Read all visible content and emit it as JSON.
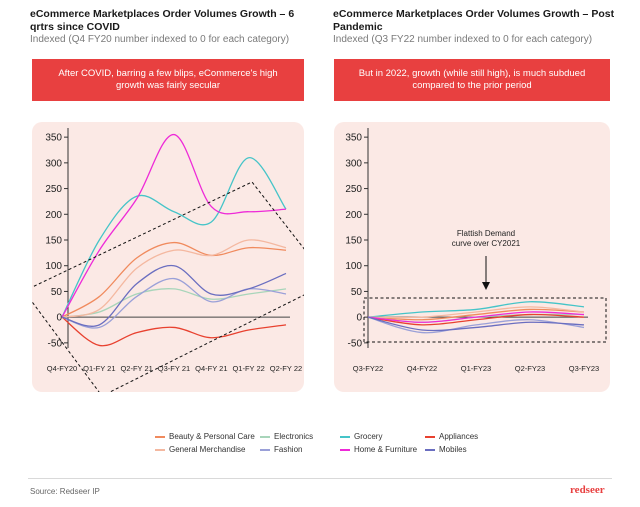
{
  "left": {
    "title": "eCommerce Marketplaces Order Volumes Growth – 6 qrtrs since COVID",
    "subtitle": "Indexed (Q4 FY20 number indexed to 0 for each category)",
    "callout": "After COVID, barring a few blips, eCommerce's high growth was fairly secular"
  },
  "right": {
    "title": "eCommerce Marketplaces Order Volumes Growth – Post Pandemic",
    "subtitle": "Indexed (Q3 FY22 number indexed to 0 for each category)",
    "callout": "But in 2022, growth (while still high), is much subdued compared to the prior period",
    "annotation": "Flattish Demand curve over CY2021"
  },
  "legend": [
    {
      "name": "Beauty & Personal Care",
      "color": "#f08a5d"
    },
    {
      "name": "Electronics",
      "color": "#a8d5ba"
    },
    {
      "name": "Grocery",
      "color": "#45c4c8"
    },
    {
      "name": "Appliances",
      "color": "#e8412f"
    },
    {
      "name": "General Merchandise",
      "color": "#f4b8a0"
    },
    {
      "name": "Fashion",
      "color": "#9aa0d8"
    },
    {
      "name": "Home & Furniture",
      "color": "#ee2ad8"
    },
    {
      "name": "Mobiles",
      "color": "#6a6ec0"
    }
  ],
  "footer": {
    "source": "Source: Redseer IP",
    "brand": "redseer"
  },
  "chart_data": [
    {
      "type": "line",
      "categories": [
        "Q4-FY20",
        "Q1-FY 21",
        "Q2-FY 21",
        "Q3-FY 21",
        "Q4-FY 21",
        "Q1-FY 22",
        "Q2-FY 22"
      ],
      "yticks": [
        -50,
        0,
        50,
        100,
        150,
        200,
        250,
        300,
        350
      ],
      "ylim": [
        -60,
        360
      ],
      "series": [
        {
          "name": "Beauty & Personal Care",
          "color": "#f08a5d",
          "values": [
            0,
            40,
            115,
            145,
            120,
            135,
            130
          ]
        },
        {
          "name": "Electronics",
          "color": "#a8d5ba",
          "values": [
            0,
            10,
            45,
            55,
            35,
            45,
            55
          ]
        },
        {
          "name": "Grocery",
          "color": "#45c4c8",
          "values": [
            0,
            150,
            235,
            205,
            185,
            310,
            210
          ]
        },
        {
          "name": "Appliances",
          "color": "#e8412f",
          "values": [
            0,
            -55,
            -30,
            -20,
            -40,
            -25,
            -15
          ]
        },
        {
          "name": "General Merchandise",
          "color": "#f4b8a0",
          "values": [
            0,
            15,
            95,
            130,
            120,
            150,
            135
          ]
        },
        {
          "name": "Fashion",
          "color": "#9aa0d8",
          "values": [
            0,
            -20,
            40,
            75,
            30,
            55,
            45
          ]
        },
        {
          "name": "Home & Furniture",
          "color": "#ee2ad8",
          "values": [
            0,
            130,
            230,
            355,
            215,
            205,
            210
          ]
        },
        {
          "name": "Mobiles",
          "color": "#6a6ec0",
          "values": [
            0,
            -15,
            65,
            100,
            45,
            55,
            85
          ]
        }
      ]
    },
    {
      "type": "line",
      "categories": [
        "Q3-FY22",
        "Q4-FY22",
        "Q1-FY23",
        "Q2-FY23",
        "Q3-FY23"
      ],
      "yticks": [
        -50,
        0,
        50,
        100,
        150,
        200,
        250,
        300,
        350
      ],
      "ylim": [
        -60,
        360
      ],
      "series": [
        {
          "name": "Beauty & Personal Care",
          "color": "#f08a5d",
          "values": [
            0,
            -5,
            5,
            15,
            10
          ]
        },
        {
          "name": "Electronics",
          "color": "#a8d5ba",
          "values": [
            0,
            -10,
            0,
            5,
            5
          ]
        },
        {
          "name": "Grocery",
          "color": "#45c4c8",
          "values": [
            0,
            10,
            15,
            30,
            20
          ]
        },
        {
          "name": "Appliances",
          "color": "#e8412f",
          "values": [
            0,
            -15,
            -5,
            5,
            0
          ]
        },
        {
          "name": "General Merchandise",
          "color": "#f4b8a0",
          "values": [
            0,
            0,
            10,
            20,
            10
          ]
        },
        {
          "name": "Fashion",
          "color": "#9aa0d8",
          "values": [
            0,
            -30,
            -15,
            -5,
            -20
          ]
        },
        {
          "name": "Home & Furniture",
          "color": "#ee2ad8",
          "values": [
            0,
            -10,
            0,
            10,
            5
          ]
        },
        {
          "name": "Mobiles",
          "color": "#6a6ec0",
          "values": [
            0,
            -25,
            -20,
            -10,
            -15
          ]
        }
      ]
    }
  ]
}
